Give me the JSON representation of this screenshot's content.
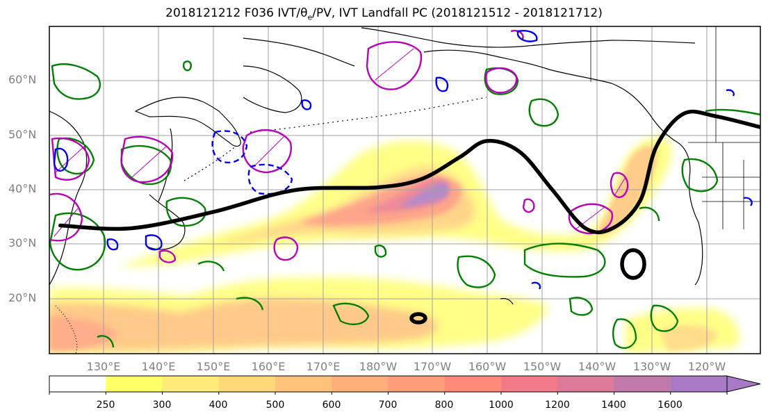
{
  "title": "2018121212 F036 IVT/θe/PV, IVT Landfall PC (2018121512 - 2018121712)",
  "title_parts": {
    "pre": "2018121212 F036 IVT/",
    "theta": "θ",
    "sub": "e",
    "post": "/PV, IVT Landfall PC (2018121512 - 2018121712)"
  },
  "chart_data": {
    "type": "heatmap",
    "lat_ticks": [
      "60°N",
      "50°N",
      "40°N",
      "30°N",
      "20°N"
    ],
    "lon_ticks": [
      "130°E",
      "140°E",
      "150°E",
      "160°E",
      "170°E",
      "180°W",
      "170°W",
      "160°W",
      "150°W",
      "140°W",
      "130°W",
      "120°W"
    ],
    "colorbar": {
      "levels": [
        250,
        300,
        400,
        500,
        600,
        700,
        800,
        1000,
        1200,
        1400,
        1600
      ],
      "tick_labels": [
        "250",
        "300",
        "400",
        "500",
        "600",
        "700",
        "800",
        "1000",
        "1200",
        "1400",
        "1600"
      ],
      "colors": [
        "#ffffff",
        "#ffff66",
        "#ffec7a",
        "#ffd978",
        "#ffc27a",
        "#ffb07a",
        "#ff9d7a",
        "#ff8a7a",
        "#f27b88",
        "#dd7a98",
        "#c07aaa",
        "#a87ac5"
      ],
      "extend": "max"
    },
    "ivt_landfall_pc_contour": {
      "color": "#000000",
      "path_lonlat": [
        [
          122,
          33.5
        ],
        [
          135,
          33
        ],
        [
          150,
          36
        ],
        [
          165,
          40
        ],
        [
          180,
          40.5
        ],
        [
          188,
          42
        ],
        [
          195,
          46
        ],
        [
          200,
          49
        ],
        [
          206,
          47
        ],
        [
          212,
          40
        ],
        [
          218,
          33
        ],
        [
          223,
          33
        ],
        [
          228,
          38
        ],
        [
          231,
          48
        ],
        [
          236,
          54
        ],
        [
          242,
          53.5
        ],
        [
          252,
          51
        ]
      ]
    },
    "pv_contour_color": "#008000",
    "theta_e_positive_color": "#bb00bb",
    "theta_e_negative_color": "#0000ff",
    "grid": true
  }
}
